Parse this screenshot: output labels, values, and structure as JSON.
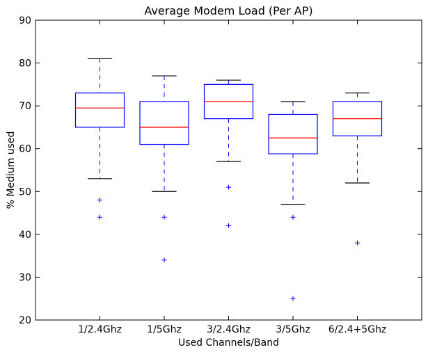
{
  "chart_data": {
    "type": "box",
    "title": "Average Modem Load (Per AP)",
    "xlabel": "Used Channels/Band",
    "ylabel": "% Medium used",
    "ylim": [
      20,
      90
    ],
    "yticks": [
      20,
      30,
      40,
      50,
      60,
      70,
      80,
      90
    ],
    "grid": false,
    "categories": [
      "1/2.4Ghz",
      "1/5Ghz",
      "3/2.4Ghz",
      "3/5Ghz",
      "6/2.4+5Ghz"
    ],
    "boxes": [
      {
        "category": "1/2.4Ghz",
        "whisker_low": 53,
        "q1": 65,
        "median": 69.5,
        "q3": 73,
        "whisker_high": 81,
        "outliers": [
          48,
          44
        ]
      },
      {
        "category": "1/5Ghz",
        "whisker_low": 50,
        "q1": 61,
        "median": 65,
        "q3": 71,
        "whisker_high": 77,
        "outliers": [
          44,
          34
        ]
      },
      {
        "category": "3/2.4Ghz",
        "whisker_low": 57,
        "q1": 67,
        "median": 71,
        "q3": 75,
        "whisker_high": 76,
        "outliers": [
          51,
          42
        ]
      },
      {
        "category": "3/5Ghz",
        "whisker_low": 47,
        "q1": 58.8,
        "median": 62.5,
        "q3": 68,
        "whisker_high": 71,
        "outliers": [
          44,
          25
        ]
      },
      {
        "category": "6/2.4+5Ghz",
        "whisker_low": 52,
        "q1": 63,
        "median": 67,
        "q3": 71,
        "whisker_high": 73,
        "outliers": [
          38
        ]
      }
    ],
    "colors": {
      "box": "#0000ff",
      "median": "#ff0000",
      "whisker": "#0000ff",
      "cap": "#000000",
      "outlier": "#0000ff",
      "axis": "#000000"
    }
  }
}
